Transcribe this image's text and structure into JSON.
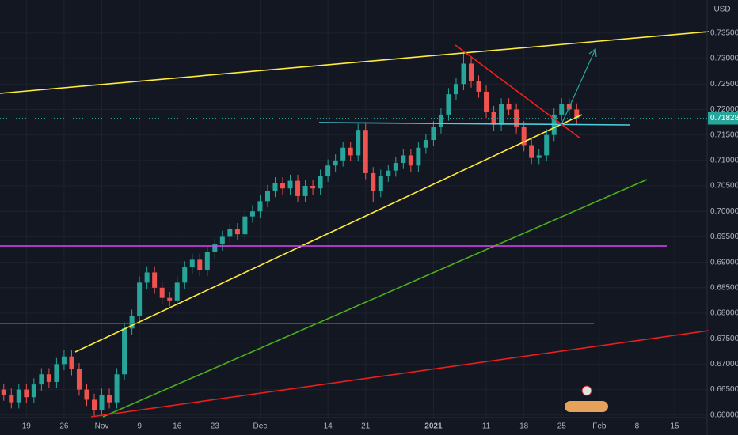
{
  "chart_data": {
    "type": "candlestick",
    "currency": "USD",
    "last_price": 0.71828,
    "up_color": "#26a69a",
    "down_color": "#ef5350",
    "xlim": [
      -0.5,
      93.3
    ],
    "ylim": [
      0.6595,
      0.7415
    ],
    "grid": true,
    "xticks": [
      {
        "value": 3,
        "label": "19"
      },
      {
        "value": 8,
        "label": "26"
      },
      {
        "value": 13,
        "label": "Nov"
      },
      {
        "value": 18,
        "label": "9"
      },
      {
        "value": 23,
        "label": "16"
      },
      {
        "value": 28,
        "label": "23"
      },
      {
        "value": 34,
        "label": "Dec"
      },
      {
        "value": 43,
        "label": "14"
      },
      {
        "value": 48,
        "label": "21"
      },
      {
        "value": 57,
        "label": "2021"
      },
      {
        "value": 64,
        "label": "11"
      },
      {
        "value": 69,
        "label": "18"
      },
      {
        "value": 74,
        "label": "25"
      },
      {
        "value": 79,
        "label": "Feb"
      },
      {
        "value": 84,
        "label": "8"
      },
      {
        "value": 89,
        "label": "15"
      }
    ],
    "yticks": [
      {
        "value": 0.66,
        "label": "0.66000"
      },
      {
        "value": 0.665,
        "label": "0.66500"
      },
      {
        "value": 0.67,
        "label": "0.67000"
      },
      {
        "value": 0.675,
        "label": "0.67500"
      },
      {
        "value": 0.68,
        "label": "0.68000"
      },
      {
        "value": 0.685,
        "label": "0.68500"
      },
      {
        "value": 0.69,
        "label": "0.69000"
      },
      {
        "value": 0.695,
        "label": "0.69500"
      },
      {
        "value": 0.7,
        "label": "0.70000"
      },
      {
        "value": 0.705,
        "label": "0.70500"
      },
      {
        "value": 0.71,
        "label": "0.71000"
      },
      {
        "value": 0.715,
        "label": "0.71500"
      },
      {
        "value": 0.72,
        "label": "0.72000"
      },
      {
        "value": 0.725,
        "label": "0.72500"
      },
      {
        "value": 0.73,
        "label": "0.73000"
      },
      {
        "value": 0.735,
        "label": "0.73500"
      }
    ],
    "open": [
      0.665,
      0.664,
      0.6625,
      0.665,
      0.6635,
      0.666,
      0.668,
      0.6665,
      0.67,
      0.6715,
      0.669,
      0.665,
      0.663,
      0.661,
      0.664,
      0.6625,
      0.668,
      0.677,
      0.6795,
      0.686,
      0.688,
      0.685,
      0.683,
      0.6825,
      0.686,
      0.689,
      0.6905,
      0.6885,
      0.692,
      0.6935,
      0.695,
      0.6965,
      0.6955,
      0.699,
      0.7,
      0.702,
      0.704,
      0.7055,
      0.7045,
      0.706,
      0.703,
      0.705,
      0.7045,
      0.707,
      0.709,
      0.71,
      0.7125,
      0.711,
      0.716,
      0.7075,
      0.704,
      0.707,
      0.708,
      0.7095,
      0.711,
      0.709,
      0.7125,
      0.714,
      0.7165,
      0.719,
      0.723,
      0.725,
      0.729,
      0.7255,
      0.7235,
      0.7195,
      0.717,
      0.721,
      0.72,
      0.7165,
      0.713,
      0.7105,
      0.711,
      0.715,
      0.719,
      0.721,
      0.72
    ],
    "high": [
      0.6662,
      0.6652,
      0.6662,
      0.6662,
      0.6672,
      0.6692,
      0.6692,
      0.6712,
      0.6727,
      0.6727,
      0.6702,
      0.6662,
      0.6642,
      0.6652,
      0.6652,
      0.6692,
      0.6782,
      0.6807,
      0.6872,
      0.6892,
      0.6892,
      0.6862,
      0.6842,
      0.6872,
      0.6902,
      0.6917,
      0.6917,
      0.6932,
      0.6947,
      0.6962,
      0.6977,
      0.6977,
      0.7002,
      0.7012,
      0.7032,
      0.7052,
      0.7067,
      0.7067,
      0.7072,
      0.7072,
      0.7062,
      0.7062,
      0.7082,
      0.7102,
      0.7112,
      0.7137,
      0.7137,
      0.7172,
      0.7172,
      0.7087,
      0.7082,
      0.7092,
      0.7107,
      0.7122,
      0.7122,
      0.7137,
      0.7152,
      0.7177,
      0.7202,
      0.7242,
      0.7262,
      0.731,
      0.7302,
      0.7267,
      0.7247,
      0.7207,
      0.7222,
      0.7222,
      0.7212,
      0.7177,
      0.7142,
      0.7122,
      0.7162,
      0.7202,
      0.7222,
      0.7222,
      0.7212
    ],
    "low": [
      0.6628,
      0.6613,
      0.6613,
      0.6623,
      0.6623,
      0.6648,
      0.6653,
      0.6653,
      0.6688,
      0.6678,
      0.6638,
      0.6618,
      0.6598,
      0.6598,
      0.6613,
      0.6613,
      0.6668,
      0.6758,
      0.6783,
      0.6848,
      0.6838,
      0.6818,
      0.6813,
      0.6813,
      0.6848,
      0.6878,
      0.6873,
      0.6873,
      0.6908,
      0.6923,
      0.6938,
      0.6943,
      0.6943,
      0.6978,
      0.6988,
      0.7008,
      0.7028,
      0.7033,
      0.7033,
      0.7018,
      0.7018,
      0.7033,
      0.7033,
      0.7058,
      0.7078,
      0.7088,
      0.7098,
      0.7098,
      0.7063,
      0.7018,
      0.7028,
      0.7058,
      0.7068,
      0.7083,
      0.7078,
      0.7078,
      0.7113,
      0.7128,
      0.7153,
      0.7178,
      0.7218,
      0.7238,
      0.7243,
      0.7223,
      0.7183,
      0.7158,
      0.7158,
      0.7188,
      0.7153,
      0.7118,
      0.7093,
      0.7093,
      0.7098,
      0.7138,
      0.7178,
      0.7188,
      0.7171
    ],
    "close": [
      0.664,
      0.6625,
      0.665,
      0.6635,
      0.666,
      0.668,
      0.6665,
      0.67,
      0.6715,
      0.669,
      0.665,
      0.663,
      0.661,
      0.664,
      0.6625,
      0.668,
      0.677,
      0.6795,
      0.686,
      0.688,
      0.685,
      0.683,
      0.6825,
      0.686,
      0.689,
      0.6905,
      0.6885,
      0.692,
      0.6935,
      0.695,
      0.6965,
      0.6955,
      0.699,
      0.7,
      0.702,
      0.704,
      0.7055,
      0.7045,
      0.706,
      0.703,
      0.705,
      0.7045,
      0.707,
      0.709,
      0.71,
      0.7125,
      0.711,
      0.716,
      0.7075,
      0.704,
      0.707,
      0.708,
      0.7095,
      0.711,
      0.709,
      0.7125,
      0.714,
      0.7165,
      0.719,
      0.723,
      0.725,
      0.729,
      0.7255,
      0.7235,
      0.7195,
      0.717,
      0.721,
      0.72,
      0.7165,
      0.713,
      0.7105,
      0.711,
      0.715,
      0.719,
      0.721,
      0.72,
      0.7183
    ]
  }
}
